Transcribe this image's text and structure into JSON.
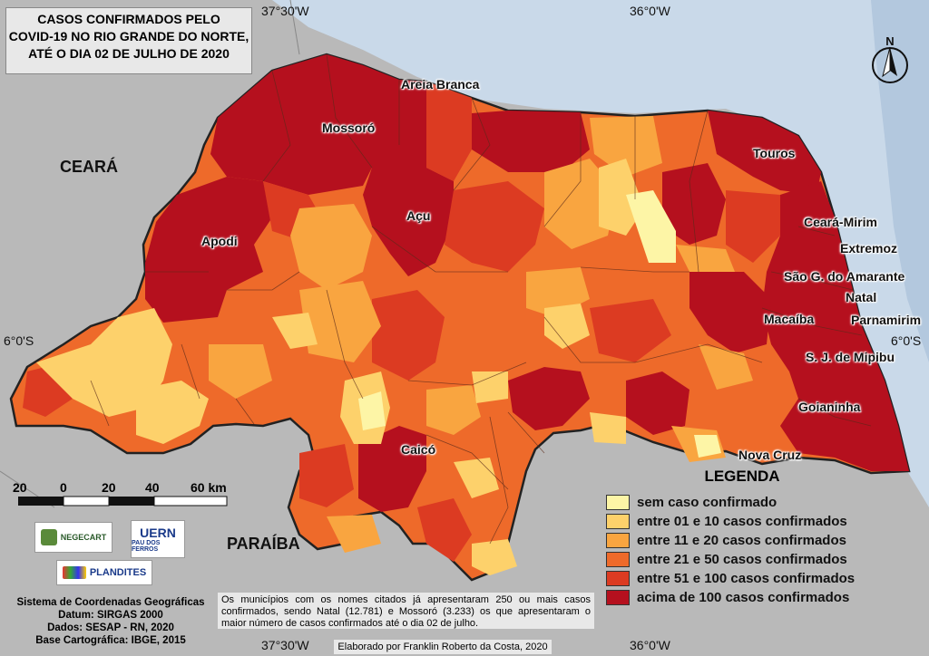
{
  "title": {
    "line1": "CASOS CONFIRMADOS PELO",
    "line2": "COVID-19 NO RIO GRANDE DO NORTE,",
    "line3": "ATÉ O DIA 02 DE JULHO DE 2020"
  },
  "coords": {
    "top_left": "37°30'W",
    "top_right": "36°0'W",
    "bottom_left": "37°30'W",
    "bottom_right": "36°0'W",
    "left_lat": "6°0'S",
    "right_lat": "6°0'S"
  },
  "states": {
    "ceara": "CEARÁ",
    "paraiba": "PARAÍBA"
  },
  "cities": {
    "areia_branca": "Areia Branca",
    "mossoro": "Mossoró",
    "acu": "Açu",
    "apodi": "Apodi",
    "caico": "Caicó",
    "touros": "Touros",
    "ceara_mirim": "Ceará-Mirim",
    "extremoz": "Extremoz",
    "sao_goncalo": "São G. do Amarante",
    "natal": "Natal",
    "macaiba": "Macaíba",
    "parnamirim": "Parnamirim",
    "mipibu": "S. J. de Mipibu",
    "goianinha": "Goianinha",
    "nova_cruz": "Nova Cruz"
  },
  "legend": {
    "title": "LEGENDA",
    "items": [
      {
        "label": "sem caso confirmado",
        "color": "#fdf5a6"
      },
      {
        "label": "entre 01 e 10 casos confirmados",
        "color": "#fdd16b"
      },
      {
        "label": "entre 11 e 20 casos confirmados",
        "color": "#f9a540"
      },
      {
        "label": "entre 21 e 50 casos confirmados",
        "color": "#ee6a2a"
      },
      {
        "label": "entre 51 e 100 casos confirmados",
        "color": "#dc3b22"
      },
      {
        "label": "acima de 100 casos confirmados",
        "color": "#b5101e"
      }
    ]
  },
  "scale": {
    "labels": [
      "20",
      "0",
      "20",
      "40",
      "60 km"
    ]
  },
  "logos": {
    "negecart": "NEGECART",
    "uern": "UERN",
    "uern_sub": "PAU DOS FERROS",
    "plandites": "PLANDITES"
  },
  "info": {
    "line1": "Sistema de Coordenadas Geográficas",
    "line2": "Datum: SIRGAS 2000",
    "line3": "Dados: SESAP - RN, 2020",
    "line4": "Base Cartográfica: IBGE, 2015"
  },
  "note": "Os municípios com os nomes citados já apresentaram 250 ou mais casos confirmados, sendo Natal (12.781) e Mossoró (3.233) os que apresentaram o maior número de casos confirmados até o dia 02 de julho.",
  "credit": "Elaborado por Franklin Roberto da Costa, 2020",
  "north_label": "N",
  "colors": {
    "ocean": "#c6d6e6",
    "neighbor": "#b9b9b9",
    "border": "#222222"
  }
}
